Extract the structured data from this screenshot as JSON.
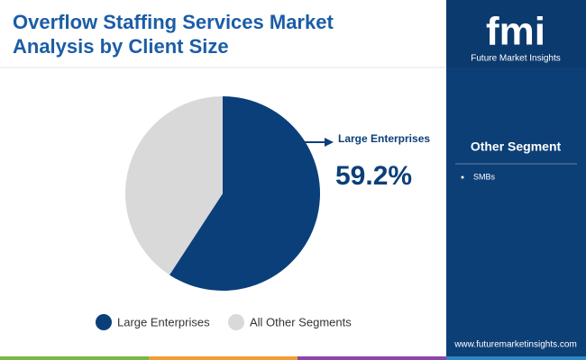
{
  "chart_data": {
    "type": "pie",
    "title": "Overflow Staffing Services Market Analysis by Client Size",
    "categories": [
      "Large Enterprises",
      "All Other Segments"
    ],
    "values": [
      59.2,
      40.8
    ],
    "value_labels": [
      "59.2%",
      null
    ],
    "colors": [
      "#0b3f7a",
      "#d9d9d9"
    ],
    "legend": "bottom"
  },
  "sidebar": {
    "logo": "fmi",
    "brand": "Future Market Insights",
    "heading": "Other Segment",
    "items": [
      "SMBs"
    ],
    "website": "www.futuremarketinsights.com"
  }
}
